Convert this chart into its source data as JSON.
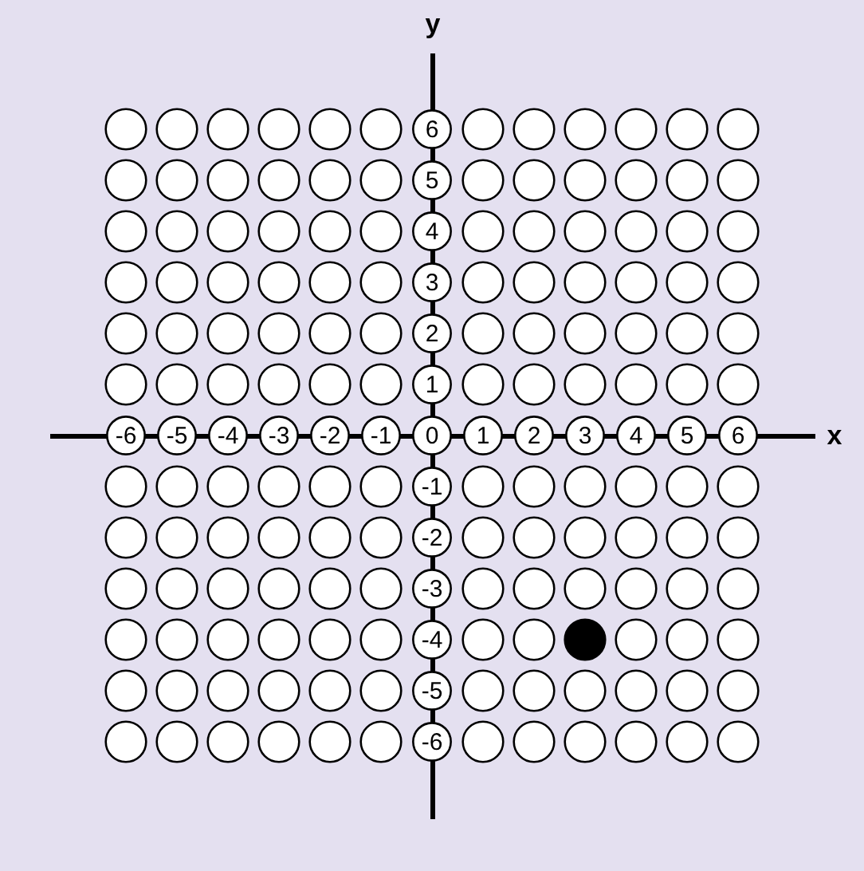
{
  "chart_data": {
    "type": "scatter",
    "xlabel": "x",
    "ylabel": "y",
    "xlim": [
      -7.5,
      7.5
    ],
    "ylim": [
      -7.5,
      7.5
    ],
    "xticks": [
      -6,
      -5,
      -4,
      -3,
      -2,
      -1,
      0,
      1,
      2,
      3,
      4,
      5,
      6
    ],
    "yticks": [
      -6,
      -5,
      -4,
      -3,
      -2,
      -1,
      1,
      2,
      3,
      4,
      5,
      6
    ],
    "grid": false,
    "marker": "circle",
    "series": [
      {
        "color": "#ffffff",
        "x": [
          -6,
          -5,
          -4,
          -3,
          -2,
          -1,
          1,
          2,
          3,
          4,
          5,
          6,
          -6,
          -5,
          -4,
          -3,
          -2,
          -1,
          1,
          2,
          3,
          4,
          5,
          6,
          -6,
          -5,
          -4,
          -3,
          -2,
          -1,
          1,
          2,
          3,
          4,
          5,
          6,
          -6,
          -5,
          -4,
          -3,
          -2,
          -1,
          1,
          2,
          3,
          4,
          5,
          6,
          -6,
          -5,
          -4,
          -3,
          -2,
          -1,
          1,
          2,
          3,
          4,
          5,
          6,
          -6,
          -5,
          -4,
          -3,
          -2,
          -1,
          1,
          2,
          3,
          4,
          5,
          6,
          -6,
          -5,
          -4,
          -3,
          -2,
          -1,
          1,
          2,
          3,
          4,
          5,
          6,
          -6,
          -5,
          -4,
          -3,
          -2,
          -1,
          1,
          2,
          3,
          4,
          5,
          6,
          -6,
          -5,
          -4,
          -3,
          -2,
          -1,
          1,
          2,
          3,
          4,
          5,
          6,
          -6,
          -5,
          -4,
          -3,
          -2,
          -1,
          1,
          2,
          4,
          5,
          6,
          -6,
          -5,
          -4,
          -3,
          -2,
          -1,
          1,
          2,
          3,
          4,
          5,
          6,
          -6,
          -5,
          -4,
          -3,
          -2,
          -1,
          1,
          2,
          3,
          4,
          5,
          6
        ],
        "values": [
          6,
          6,
          6,
          6,
          6,
          6,
          6,
          6,
          6,
          6,
          6,
          6,
          5,
          5,
          5,
          5,
          5,
          5,
          5,
          5,
          5,
          5,
          5,
          5,
          4,
          4,
          4,
          4,
          4,
          4,
          4,
          4,
          4,
          4,
          4,
          4,
          3,
          3,
          3,
          3,
          3,
          3,
          3,
          3,
          3,
          3,
          3,
          3,
          2,
          2,
          2,
          2,
          2,
          2,
          2,
          2,
          2,
          2,
          2,
          2,
          1,
          1,
          1,
          1,
          1,
          1,
          1,
          1,
          1,
          1,
          1,
          1,
          -1,
          -1,
          -1,
          -1,
          -1,
          -1,
          -1,
          -1,
          -1,
          -1,
          -1,
          -1,
          -2,
          -2,
          -2,
          -2,
          -2,
          -2,
          -2,
          -2,
          -2,
          -2,
          -2,
          -2,
          -3,
          -3,
          -3,
          -3,
          -3,
          -3,
          -3,
          -3,
          -3,
          -3,
          -3,
          -3,
          -4,
          -4,
          -4,
          -4,
          -4,
          -4,
          -4,
          -4,
          -4,
          -4,
          -4,
          -5,
          -5,
          -5,
          -5,
          -5,
          -5,
          -5,
          -5,
          -5,
          -5,
          -5,
          -5,
          -6,
          -6,
          -6,
          -6,
          -6,
          -6,
          -6,
          -6,
          -6,
          -6,
          -6,
          -6
        ]
      },
      {
        "color": "#000000",
        "x": [
          3
        ],
        "values": [
          -4
        ]
      }
    ]
  }
}
